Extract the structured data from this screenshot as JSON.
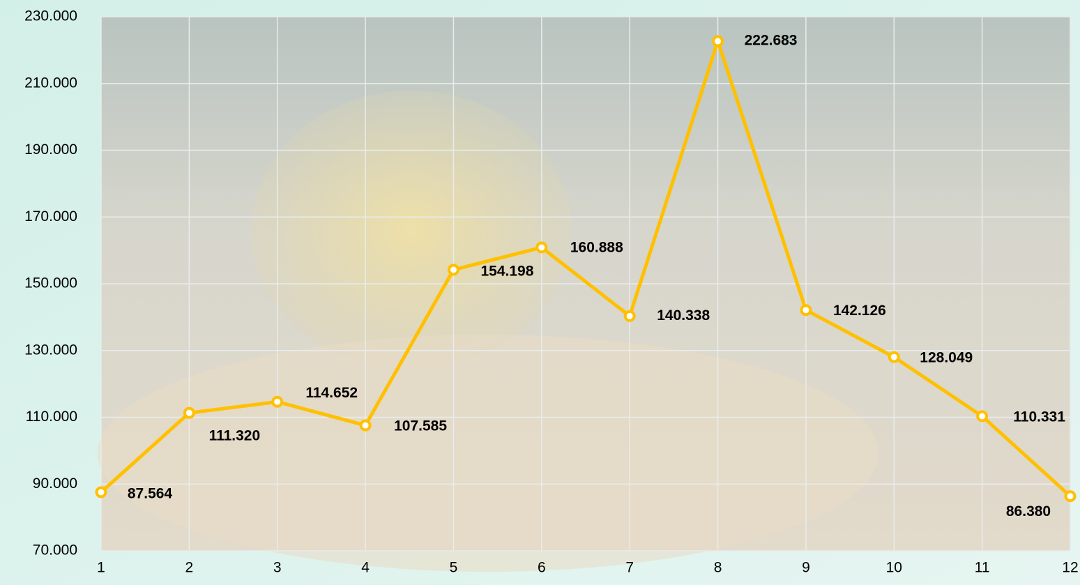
{
  "chart_data": {
    "type": "line",
    "x": [
      1,
      2,
      3,
      4,
      5,
      6,
      7,
      8,
      9,
      10,
      11,
      12
    ],
    "xlim": [
      1,
      12
    ],
    "xticks": [
      1,
      2,
      3,
      4,
      5,
      6,
      7,
      8,
      9,
      10,
      11,
      12
    ],
    "ylim": [
      70000,
      230000
    ],
    "yticks": [
      {
        "value": 70000,
        "label": "70.000"
      },
      {
        "value": 90000,
        "label": "90.000"
      },
      {
        "value": 110000,
        "label": "110.000"
      },
      {
        "value": 130000,
        "label": "130.000"
      },
      {
        "value": 150000,
        "label": "150.000"
      },
      {
        "value": 170000,
        "label": "170.000"
      },
      {
        "value": 190000,
        "label": "190.000"
      },
      {
        "value": 210000,
        "label": "210.000"
      },
      {
        "value": 230000,
        "label": "230.000"
      }
    ],
    "grid": true,
    "series": [
      {
        "color": "#ffc000",
        "values": [
          87564,
          111320,
          114652,
          107585,
          154198,
          160888,
          140338,
          222683,
          142126,
          128049,
          110331,
          86380
        ],
        "value_labels": [
          "87.564",
          "111.320",
          "114.652",
          "107.585",
          "154.198",
          "160.888",
          "140.338",
          "222.683",
          "142.126",
          "128.049",
          "110.331",
          "86.380"
        ]
      }
    ]
  }
}
